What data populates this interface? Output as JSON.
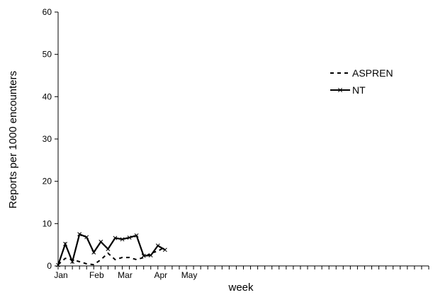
{
  "chart_data": {
    "type": "line",
    "title": "",
    "xlabel": "week",
    "ylabel": "Reports per 1000 encounters",
    "ylim": [
      0,
      60
    ],
    "yticks": [
      0,
      10,
      20,
      30,
      40,
      50,
      60
    ],
    "xlim": [
      1,
      53
    ],
    "x_tick_weeks": [
      1,
      2,
      3,
      4,
      5,
      6,
      7,
      8,
      9,
      10,
      11,
      12,
      13,
      14,
      15,
      16,
      17,
      18,
      19,
      20,
      21,
      22,
      23,
      24,
      25,
      26,
      27,
      28,
      29,
      30,
      31,
      32,
      33,
      34,
      35,
      36,
      37,
      38,
      39,
      40,
      41,
      42,
      43,
      44,
      45,
      46,
      47,
      48,
      49,
      50,
      51,
      52,
      53
    ],
    "x_month_labels": [
      {
        "week": 1,
        "label": "Jan"
      },
      {
        "week": 6,
        "label": "Feb"
      },
      {
        "week": 10,
        "label": "Mar"
      },
      {
        "week": 15,
        "label": "Apr"
      },
      {
        "week": 19,
        "label": "May"
      }
    ],
    "grid": false,
    "legend_position": "top-right",
    "series": [
      {
        "name": "ASPREN",
        "style": "dashed",
        "color": "#000000",
        "marker": "none",
        "x": [
          1,
          2,
          3,
          4,
          5,
          6,
          7,
          8,
          9,
          10,
          11,
          12,
          13,
          14,
          15,
          16
        ],
        "y": [
          0.3,
          1.8,
          1.5,
          1.0,
          0.5,
          0.3,
          1.5,
          3.0,
          1.5,
          2.0,
          2.0,
          1.5,
          2.0,
          3.0,
          3.5,
          4.5
        ]
      },
      {
        "name": "NT",
        "style": "solid",
        "color": "#000000",
        "marker": "x",
        "x": [
          1,
          2,
          3,
          4,
          5,
          6,
          7,
          8,
          9,
          10,
          11,
          12,
          13,
          14,
          15,
          16
        ],
        "y": [
          0.2,
          5.2,
          1.0,
          7.5,
          6.8,
          3.2,
          5.7,
          4.0,
          6.6,
          6.3,
          6.7,
          7.2,
          2.4,
          2.5,
          4.8,
          3.8
        ]
      }
    ]
  }
}
